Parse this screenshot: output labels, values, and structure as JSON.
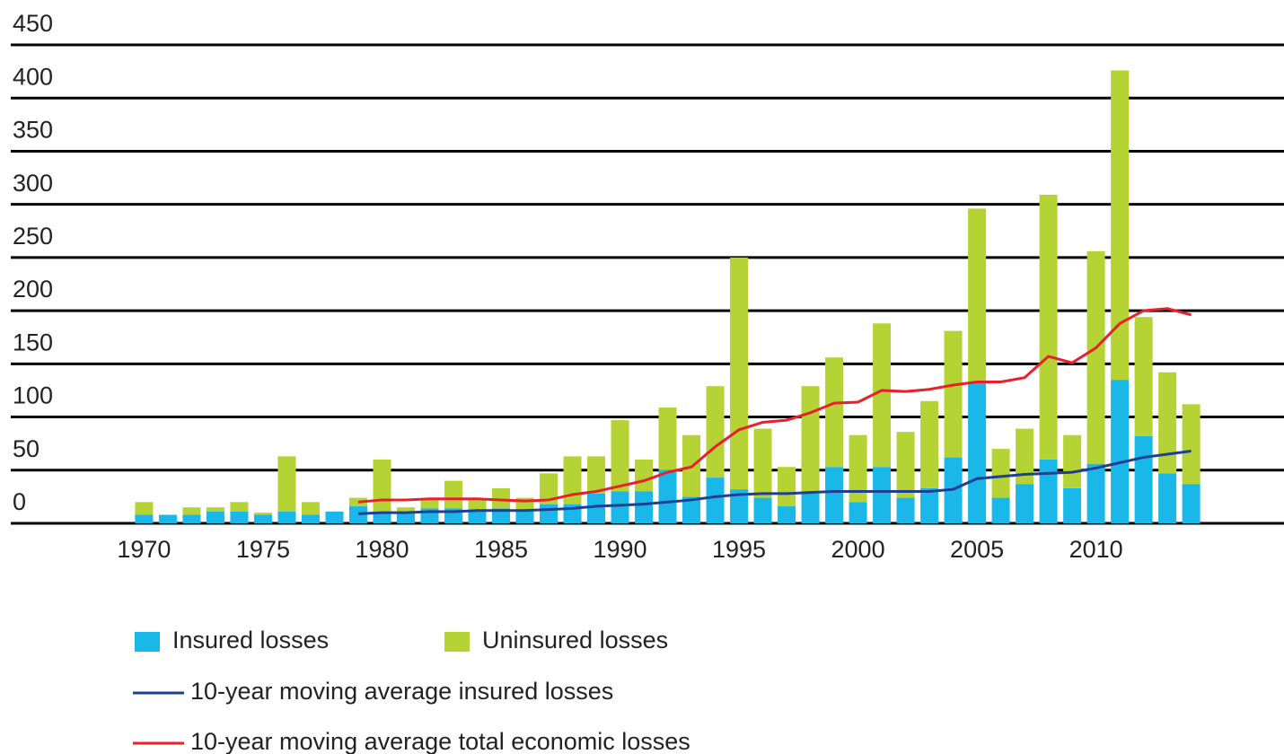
{
  "chart_data": {
    "type": "bar",
    "stacked": true,
    "x": [
      1970,
      1971,
      1972,
      1973,
      1974,
      1975,
      1976,
      1977,
      1978,
      1979,
      1980,
      1981,
      1982,
      1983,
      1984,
      1985,
      1986,
      1987,
      1988,
      1989,
      1990,
      1991,
      1992,
      1993,
      1994,
      1995,
      1996,
      1997,
      1998,
      1999,
      2000,
      2001,
      2002,
      2003,
      2004,
      2005,
      2006,
      2007,
      2008,
      2009,
      2010,
      2011,
      2012,
      2013,
      2014
    ],
    "xlim": [
      1964.4,
      2017.9
    ],
    "xticks": [
      1970,
      1975,
      1980,
      1985,
      1990,
      1995,
      2000,
      2005,
      2010
    ],
    "ylim": [
      0,
      450
    ],
    "yticks": [
      0,
      50,
      100,
      150,
      200,
      250,
      300,
      350,
      400,
      450
    ],
    "grid": true,
    "series": [
      {
        "name": "Insured losses",
        "type": "bar",
        "color": "#1ab8e8",
        "values": [
          8,
          8,
          8,
          11,
          11,
          8,
          11,
          8,
          11,
          16,
          11,
          11,
          14,
          14,
          12,
          14,
          11,
          18,
          18,
          28,
          30,
          30,
          50,
          25,
          43,
          32,
          24,
          16,
          28,
          53,
          20,
          53,
          24,
          33,
          62,
          132,
          24,
          37,
          60,
          33,
          56,
          135,
          82,
          47,
          37
        ]
      },
      {
        "name": "Uninsured losses",
        "type": "bar",
        "color": "#b5d334",
        "values": [
          12,
          0,
          7,
          4,
          9,
          2,
          52,
          12,
          0,
          8,
          49,
          4,
          8,
          26,
          11,
          19,
          13,
          29,
          45,
          35,
          67,
          30,
          59,
          58,
          86,
          218,
          65,
          37,
          101,
          103,
          63,
          135,
          62,
          82,
          119,
          164,
          46,
          52,
          249,
          50,
          200,
          291,
          112,
          95,
          75
        ]
      },
      {
        "name": "10-year moving average insured losses",
        "type": "line",
        "color": "#1f3f93",
        "values": [
          null,
          null,
          null,
          null,
          null,
          null,
          null,
          null,
          null,
          9,
          10,
          10,
          11,
          11,
          12,
          12,
          12,
          13,
          14,
          16,
          17,
          18,
          20,
          22,
          25,
          27,
          28,
          28,
          29,
          30,
          30,
          30,
          30,
          30,
          32,
          42,
          44,
          46,
          47,
          48,
          52,
          57,
          62,
          65,
          68
        ]
      },
      {
        "name": "10-year moving average total economic losses",
        "type": "line",
        "color": "#e8202a",
        "values": [
          null,
          null,
          null,
          null,
          null,
          null,
          null,
          null,
          null,
          20,
          22,
          22,
          23,
          23,
          23,
          22,
          21,
          22,
          27,
          30,
          35,
          40,
          48,
          53,
          72,
          88,
          95,
          97,
          104,
          113,
          114,
          125,
          124,
          126,
          130,
          133,
          133,
          137,
          157,
          151,
          165,
          188,
          200,
          202,
          196
        ]
      }
    ]
  }
}
